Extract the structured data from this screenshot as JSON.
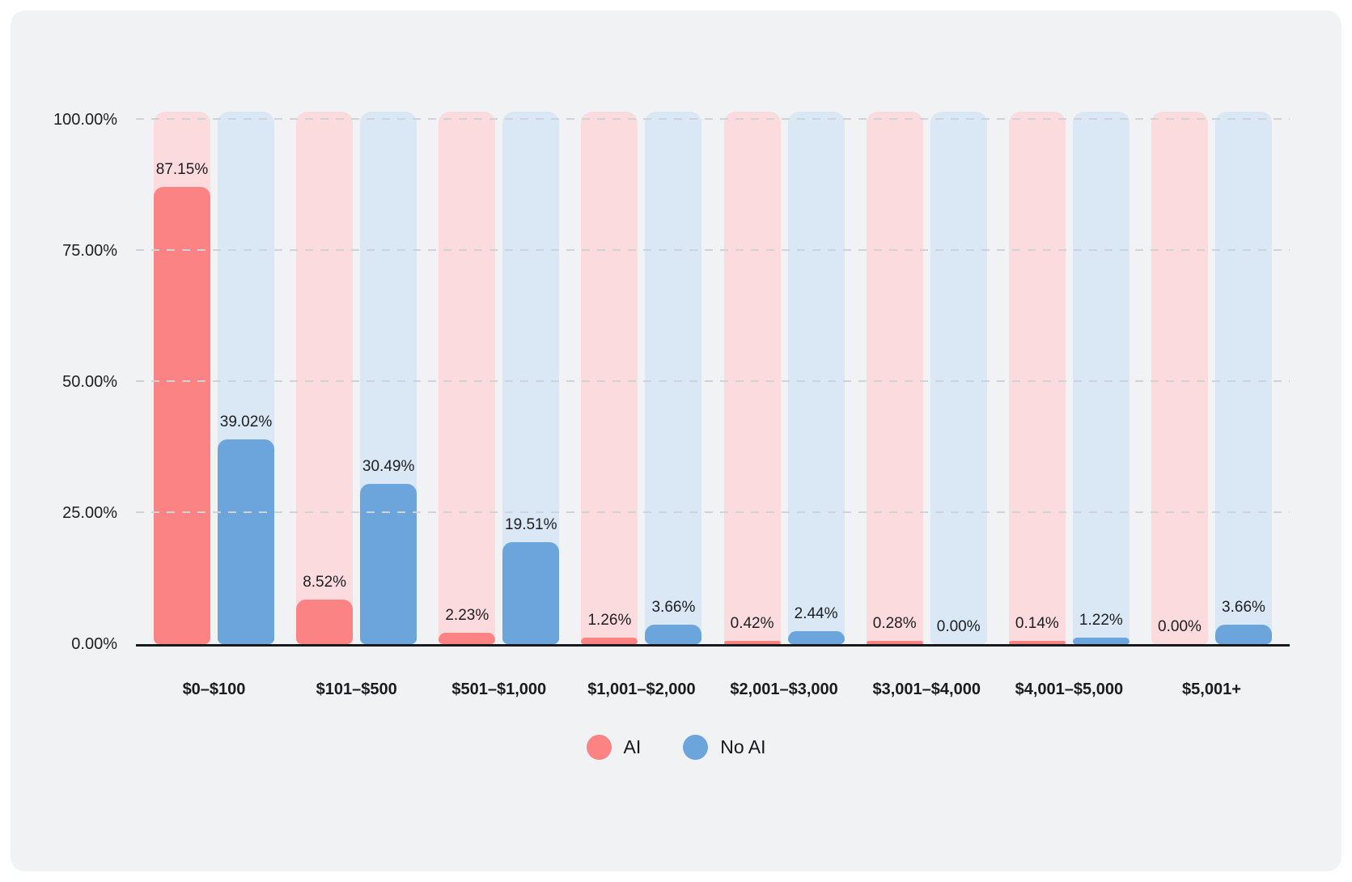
{
  "chart_data": {
    "type": "bar",
    "title": "",
    "xlabel": "",
    "ylabel": "",
    "ylim": [
      0,
      100
    ],
    "grid": "dashed horizontal",
    "legend_position": "bottom-center",
    "categories": [
      "$0–$100",
      "$101–$500",
      "$501–$1,000",
      "$1,001–$2,000",
      "$2,001–$3,000",
      "$3,001–$4,000",
      "$4,001–$5,000",
      "$5,001+"
    ],
    "series": [
      {
        "name": "AI",
        "color": "#FC8383",
        "track_color": "#FBDBDE",
        "values": [
          87.15,
          8.52,
          2.23,
          1.26,
          0.42,
          0.28,
          0.14,
          0
        ],
        "labels": [
          "87.15%",
          "8.52%",
          "2.23%",
          "1.26%",
          "0.42%",
          "0.28%",
          "0.14%",
          "0.00%"
        ]
      },
      {
        "name": "No AI",
        "color": "#6BA5DC",
        "track_color": "#DAE7F5",
        "values": [
          39.02,
          30.49,
          19.51,
          3.66,
          2.44,
          0,
          1.22,
          3.66
        ],
        "labels": [
          "39.02%",
          "30.49%",
          "19.51%",
          "3.66%",
          "2.44%",
          "0.00%",
          "1.22%",
          "3.66%"
        ]
      }
    ],
    "yticks": [
      {
        "value": 0,
        "label": "0.00%"
      },
      {
        "value": 25,
        "label": "25.00%"
      },
      {
        "value": 50,
        "label": "50.00%"
      },
      {
        "value": 75,
        "label": "75.00%"
      },
      {
        "value": 100,
        "label": "100.00%"
      }
    ]
  },
  "colors": {
    "page_background": "#FFFFFF",
    "card_background": "#F1F2F4",
    "gridline": "#CFD2D6",
    "axis_line": "#17191C",
    "text": "#1C1E21"
  }
}
